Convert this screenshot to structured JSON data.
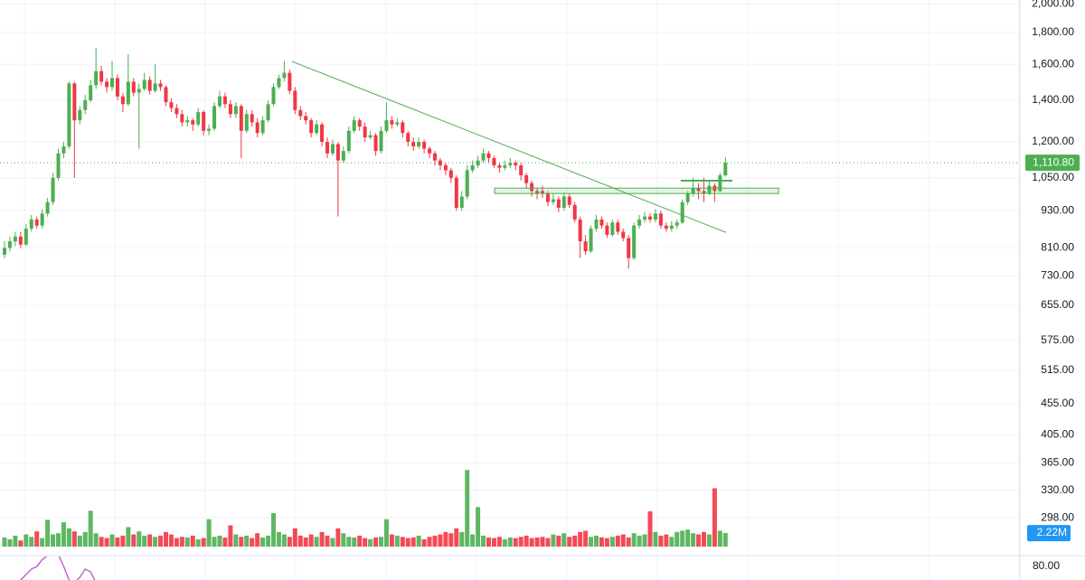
{
  "chart_data": {
    "type": "candlestick",
    "log_scale": true,
    "grid": true,
    "up_color": "#4caf50",
    "down_color": "#f23645",
    "drawing_color": "#4caf50",
    "rsi_color": "#ba68c8",
    "ylim": [
      259,
      2030
    ],
    "yticks": [
      {
        "value": 2000,
        "label": "2,000.00"
      },
      {
        "value": 1800,
        "label": "1,800.00"
      },
      {
        "value": 1600,
        "label": "1,600.00"
      },
      {
        "value": 1400,
        "label": "1,400.00"
      },
      {
        "value": 1200,
        "label": "1,200.00"
      },
      {
        "value": 1050,
        "label": "1,050.00"
      },
      {
        "value": 930,
        "label": "930.00"
      },
      {
        "value": 810,
        "label": "810.00"
      },
      {
        "value": 730,
        "label": "730.00"
      },
      {
        "value": 655,
        "label": "655.00"
      },
      {
        "value": 575,
        "label": "575.00"
      },
      {
        "value": 515,
        "label": "515.00"
      },
      {
        "value": 455,
        "label": "455.00"
      },
      {
        "value": 405,
        "label": "405.00"
      },
      {
        "value": 365,
        "label": "365.00"
      },
      {
        "value": 330,
        "label": "330.00"
      },
      {
        "value": 298,
        "label": "298.00"
      }
    ],
    "candles": [
      [
        790,
        830,
        780,
        810
      ],
      [
        810,
        845,
        800,
        830
      ],
      [
        830,
        860,
        815,
        845
      ],
      [
        845,
        860,
        810,
        820
      ],
      [
        820,
        885,
        815,
        870
      ],
      [
        870,
        915,
        860,
        900
      ],
      [
        900,
        910,
        870,
        880
      ],
      [
        880,
        935,
        870,
        920
      ],
      [
        920,
        975,
        910,
        960
      ],
      [
        960,
        1070,
        950,
        1050
      ],
      [
        1050,
        1170,
        1040,
        1150
      ],
      [
        1150,
        1200,
        1130,
        1180
      ],
      [
        1180,
        1500,
        1170,
        1490
      ],
      [
        1490,
        1500,
        1050,
        1300
      ],
      [
        1300,
        1370,
        1280,
        1350
      ],
      [
        1350,
        1430,
        1330,
        1400
      ],
      [
        1400,
        1510,
        1390,
        1480
      ],
      [
        1480,
        1700,
        1460,
        1560
      ],
      [
        1560,
        1590,
        1480,
        1500
      ],
      [
        1500,
        1520,
        1440,
        1470
      ],
      [
        1470,
        1620,
        1450,
        1520
      ],
      [
        1520,
        1540,
        1400,
        1420
      ],
      [
        1420,
        1440,
        1340,
        1380
      ],
      [
        1380,
        1660,
        1370,
        1500
      ],
      [
        1500,
        1520,
        1420,
        1440
      ],
      [
        1440,
        1490,
        1170,
        1460
      ],
      [
        1460,
        1550,
        1450,
        1510
      ],
      [
        1510,
        1530,
        1430,
        1450
      ],
      [
        1450,
        1600,
        1440,
        1490
      ],
      [
        1490,
        1510,
        1450,
        1470
      ],
      [
        1470,
        1480,
        1370,
        1390
      ],
      [
        1390,
        1410,
        1340,
        1360
      ],
      [
        1360,
        1380,
        1310,
        1330
      ],
      [
        1330,
        1350,
        1270,
        1290
      ],
      [
        1290,
        1320,
        1270,
        1300
      ],
      [
        1300,
        1310,
        1250,
        1280
      ],
      [
        1280,
        1360,
        1270,
        1340
      ],
      [
        1340,
        1350,
        1230,
        1250
      ],
      [
        1250,
        1280,
        1230,
        1260
      ],
      [
        1260,
        1390,
        1250,
        1370
      ],
      [
        1370,
        1450,
        1360,
        1420
      ],
      [
        1420,
        1440,
        1360,
        1380
      ],
      [
        1380,
        1400,
        1310,
        1330
      ],
      [
        1330,
        1390,
        1310,
        1370
      ],
      [
        1370,
        1380,
        1130,
        1250
      ],
      [
        1250,
        1350,
        1240,
        1330
      ],
      [
        1330,
        1350,
        1270,
        1290
      ],
      [
        1290,
        1310,
        1220,
        1240
      ],
      [
        1240,
        1320,
        1230,
        1300
      ],
      [
        1300,
        1400,
        1290,
        1380
      ],
      [
        1380,
        1490,
        1370,
        1470
      ],
      [
        1470,
        1540,
        1460,
        1520
      ],
      [
        1520,
        1620,
        1500,
        1550
      ],
      [
        1550,
        1570,
        1430,
        1450
      ],
      [
        1450,
        1470,
        1330,
        1350
      ],
      [
        1350,
        1370,
        1300,
        1320
      ],
      [
        1320,
        1340,
        1280,
        1300
      ],
      [
        1300,
        1310,
        1220,
        1240
      ],
      [
        1240,
        1300,
        1230,
        1280
      ],
      [
        1280,
        1290,
        1180,
        1200
      ],
      [
        1200,
        1220,
        1130,
        1150
      ],
      [
        1150,
        1210,
        1140,
        1190
      ],
      [
        1190,
        1200,
        910,
        1120
      ],
      [
        1120,
        1180,
        1110,
        1160
      ],
      [
        1160,
        1270,
        1150,
        1250
      ],
      [
        1250,
        1320,
        1240,
        1300
      ],
      [
        1300,
        1310,
        1250,
        1270
      ],
      [
        1270,
        1290,
        1200,
        1220
      ],
      [
        1220,
        1250,
        1210,
        1230
      ],
      [
        1230,
        1240,
        1140,
        1160
      ],
      [
        1160,
        1270,
        1150,
        1250
      ],
      [
        1250,
        1390,
        1240,
        1300
      ],
      [
        1300,
        1320,
        1260,
        1280
      ],
      [
        1280,
        1310,
        1270,
        1290
      ],
      [
        1290,
        1300,
        1220,
        1240
      ],
      [
        1240,
        1250,
        1180,
        1200
      ],
      [
        1200,
        1220,
        1160,
        1180
      ],
      [
        1180,
        1220,
        1170,
        1200
      ],
      [
        1200,
        1210,
        1150,
        1170
      ],
      [
        1170,
        1180,
        1130,
        1150
      ],
      [
        1150,
        1160,
        1100,
        1120
      ],
      [
        1120,
        1130,
        1080,
        1100
      ],
      [
        1100,
        1110,
        1060,
        1080
      ],
      [
        1080,
        1090,
        1030,
        1050
      ],
      [
        1050,
        1060,
        930,
        940
      ],
      [
        940,
        1000,
        930,
        980
      ],
      [
        980,
        1100,
        970,
        1080
      ],
      [
        1080,
        1120,
        1070,
        1100
      ],
      [
        1100,
        1140,
        1090,
        1120
      ],
      [
        1120,
        1170,
        1110,
        1150
      ],
      [
        1150,
        1160,
        1110,
        1130
      ],
      [
        1130,
        1140,
        1090,
        1100
      ],
      [
        1100,
        1110,
        1070,
        1090
      ],
      [
        1090,
        1120,
        1080,
        1100
      ],
      [
        1100,
        1130,
        1090,
        1110
      ],
      [
        1110,
        1120,
        1080,
        1100
      ],
      [
        1100,
        1110,
        1040,
        1060
      ],
      [
        1060,
        1070,
        1010,
        1030
      ],
      [
        1030,
        1040,
        980,
        1000
      ],
      [
        1000,
        1010,
        970,
        990
      ],
      [
        1000,
        1020,
        975,
        990
      ],
      [
        990,
        1000,
        945,
        960
      ],
      [
        960,
        990,
        950,
        970
      ],
      [
        970,
        980,
        925,
        940
      ],
      [
        940,
        995,
        930,
        980
      ],
      [
        980,
        990,
        940,
        950
      ],
      [
        950,
        960,
        890,
        900
      ],
      [
        900,
        910,
        780,
        830
      ],
      [
        830,
        850,
        790,
        800
      ],
      [
        800,
        880,
        795,
        870
      ],
      [
        870,
        915,
        860,
        900
      ],
      [
        900,
        910,
        870,
        880
      ],
      [
        880,
        890,
        840,
        850
      ],
      [
        850,
        900,
        845,
        890
      ],
      [
        890,
        900,
        850,
        860
      ],
      [
        860,
        870,
        830,
        840
      ],
      [
        840,
        850,
        750,
        780
      ],
      [
        780,
        890,
        775,
        880
      ],
      [
        880,
        915,
        870,
        900
      ],
      [
        900,
        925,
        890,
        910
      ],
      [
        910,
        920,
        890,
        900
      ],
      [
        900,
        935,
        890,
        920
      ],
      [
        920,
        930,
        870,
        880
      ],
      [
        880,
        890,
        860,
        870
      ],
      [
        870,
        895,
        860,
        880
      ],
      [
        880,
        900,
        870,
        890
      ],
      [
        890,
        970,
        885,
        960
      ],
      [
        960,
        1000,
        950,
        990
      ],
      [
        990,
        1050,
        980,
        1010
      ],
      [
        1010,
        1030,
        970,
        1000
      ],
      [
        1000,
        1050,
        960,
        990
      ],
      [
        990,
        1040,
        985,
        1020
      ],
      [
        1020,
        1030,
        960,
        1000
      ],
      [
        1000,
        1070,
        995,
        1060
      ],
      [
        1060,
        1135,
        1055,
        1110.8
      ]
    ],
    "volume_ylim": [
      0,
      90
    ],
    "volumes": [
      1.5,
      1.2,
      1.8,
      1.0,
      2.0,
      1.6,
      2.5,
      1.4,
      4.4,
      2.0,
      2.2,
      4.0,
      3.0,
      2.5,
      1.8,
      2.4,
      5.9,
      2.2,
      1.6,
      1.4,
      2.0,
      1.5,
      1.8,
      3.2,
      2.0,
      2.5,
      1.8,
      2.0,
      1.6,
      1.8,
      2.4,
      2.0,
      1.4,
      1.6,
      1.5,
      1.8,
      1.2,
      1.4,
      4.5,
      1.6,
      1.8,
      1.5,
      3.5,
      2.0,
      1.6,
      1.8,
      1.4,
      2.2,
      1.5,
      1.8,
      5.5,
      2.4,
      2.0,
      1.6,
      3.0,
      1.8,
      1.5,
      2.0,
      1.6,
      2.4,
      1.8,
      1.4,
      3.0,
      2.2,
      1.6,
      1.5,
      1.8,
      1.4,
      1.2,
      1.5,
      1.6,
      4.5,
      2.0,
      1.8,
      1.6,
      1.4,
      1.5,
      1.8,
      1.2,
      1.6,
      1.8,
      2.0,
      2.4,
      2.2,
      3.0,
      2.4,
      12.6,
      2.0,
      6.5,
      1.8,
      1.5,
      1.4,
      1.6,
      1.2,
      1.5,
      1.4,
      1.6,
      1.8,
      1.4,
      1.5,
      1.6,
      1.4,
      2.0,
      1.8,
      2.2,
      1.6,
      1.8,
      2.4,
      2.6,
      1.6,
      1.8,
      1.5,
      1.4,
      1.6,
      1.8,
      2.0,
      1.5,
      2.2,
      1.8,
      2.0,
      5.8,
      2.4,
      1.8,
      2.0,
      1.6,
      2.4,
      2.6,
      2.8,
      2.2,
      2.0,
      2.4,
      2.0,
      9.6,
      2.6,
      2.22
    ],
    "last_price": {
      "value": 1110.8,
      "label": "1,110.80"
    },
    "last_volume": {
      "value": 2.22,
      "label": "2.22M"
    },
    "rsi_ylim": [
      70,
      88
    ],
    "rsi_ticks": [
      {
        "value": 80,
        "label": "80.00"
      }
    ],
    "rsi": [
      60,
      62,
      65,
      70,
      74,
      78,
      80,
      85,
      88,
      90,
      89,
      80,
      70,
      68,
      72,
      78,
      76,
      68,
      60,
      null,
      null,
      null,
      null,
      null,
      null,
      null,
      null,
      null,
      null,
      null,
      null,
      null,
      null,
      null,
      null,
      null,
      null,
      null,
      null,
      null,
      null,
      null,
      null,
      null,
      null,
      null,
      null,
      null,
      null,
      null,
      null,
      null,
      null,
      null,
      null,
      null,
      null,
      null,
      null,
      null,
      null,
      null,
      null,
      null,
      null,
      null,
      null,
      null,
      null,
      null,
      null,
      null,
      null,
      null,
      null,
      null,
      null,
      null,
      null,
      null,
      null,
      null,
      null,
      null,
      null,
      null,
      null,
      null,
      null,
      null,
      null,
      null,
      null,
      null,
      null,
      null,
      null,
      null,
      null,
      null,
      null,
      null,
      null,
      null,
      null,
      null,
      null,
      null,
      null,
      null,
      null,
      null,
      null,
      null,
      null,
      null,
      null,
      null,
      null,
      null,
      null,
      null,
      null,
      null,
      null,
      null,
      null,
      null,
      null,
      null,
      null,
      null,
      null,
      null,
      null
    ],
    "drawings": {
      "trendline": [
        [
          53.4,
          1617
        ],
        [
          134.1,
          858
        ]
      ],
      "zone": {
        "x": [
          91.1,
          143.9
        ],
        "y": [
          991,
          1011
        ]
      },
      "level": {
        "x": [
          125.7,
          135.3
        ],
        "y": 1039
      }
    }
  }
}
